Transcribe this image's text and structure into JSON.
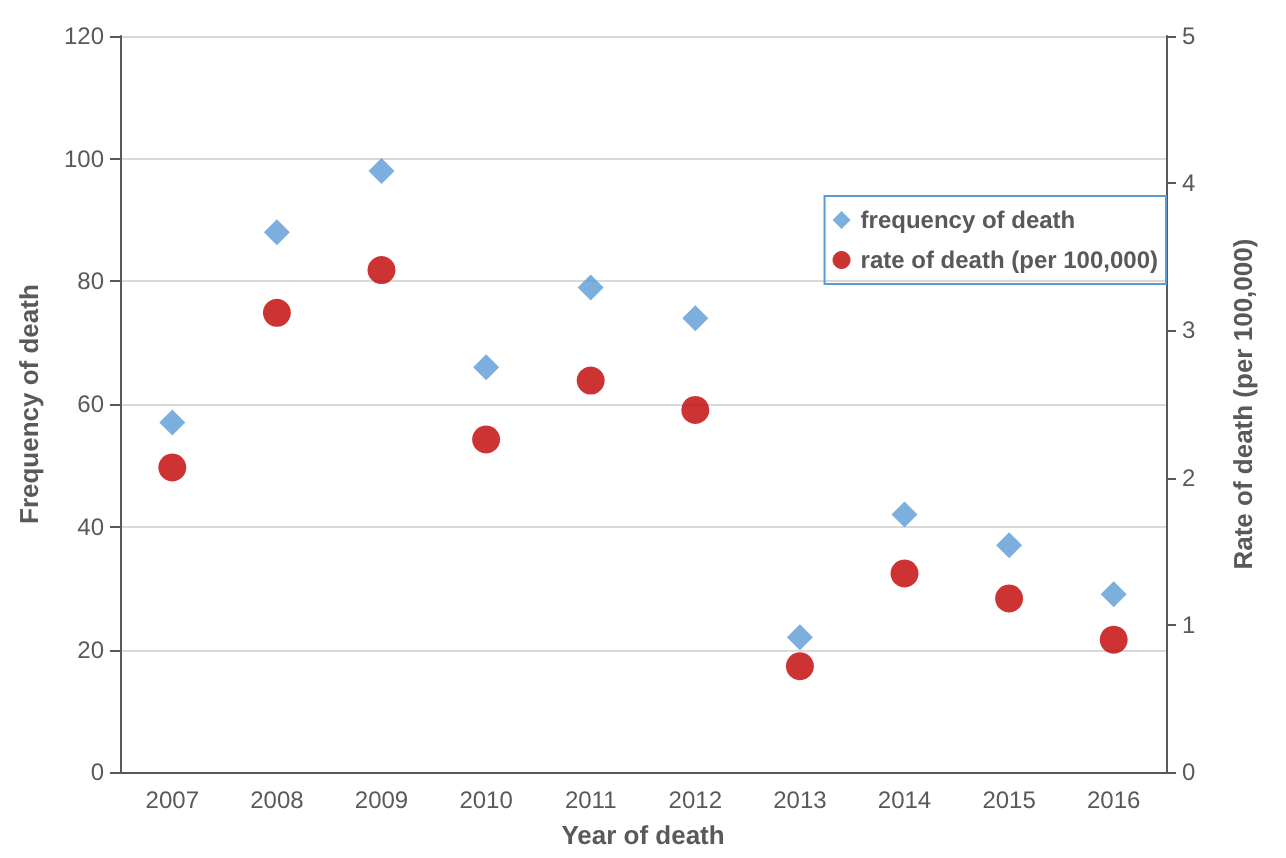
{
  "chart_data": {
    "type": "scatter",
    "xlabel": "Year of death",
    "ylabel": "Frequency of death",
    "y2label": "Rate of death (per 100,000)",
    "categories": [
      "2007",
      "2008",
      "2009",
      "2010",
      "2011",
      "2012",
      "2013",
      "2014",
      "2015",
      "2016"
    ],
    "series": [
      {
        "name": "frequency of death",
        "color": "#5b9bd5",
        "marker": "diamond",
        "values": [
          57,
          88,
          98,
          66,
          79,
          74,
          22,
          42,
          37,
          29
        ]
      },
      {
        "name": "rate of death (per 100,000)",
        "color": "#c00000",
        "marker": "circle",
        "axis": "y2",
        "values": [
          2.07,
          3.12,
          3.41,
          2.26,
          2.66,
          2.46,
          0.72,
          1.35,
          1.18,
          0.9
        ]
      }
    ],
    "ylim": [
      0,
      120
    ],
    "yticks": [
      0,
      20,
      40,
      60,
      80,
      100,
      120
    ],
    "y2lim": [
      0,
      5
    ],
    "y2ticks": [
      0,
      1,
      2,
      3,
      4,
      5
    ],
    "grid": "y",
    "legend": "top right"
  }
}
